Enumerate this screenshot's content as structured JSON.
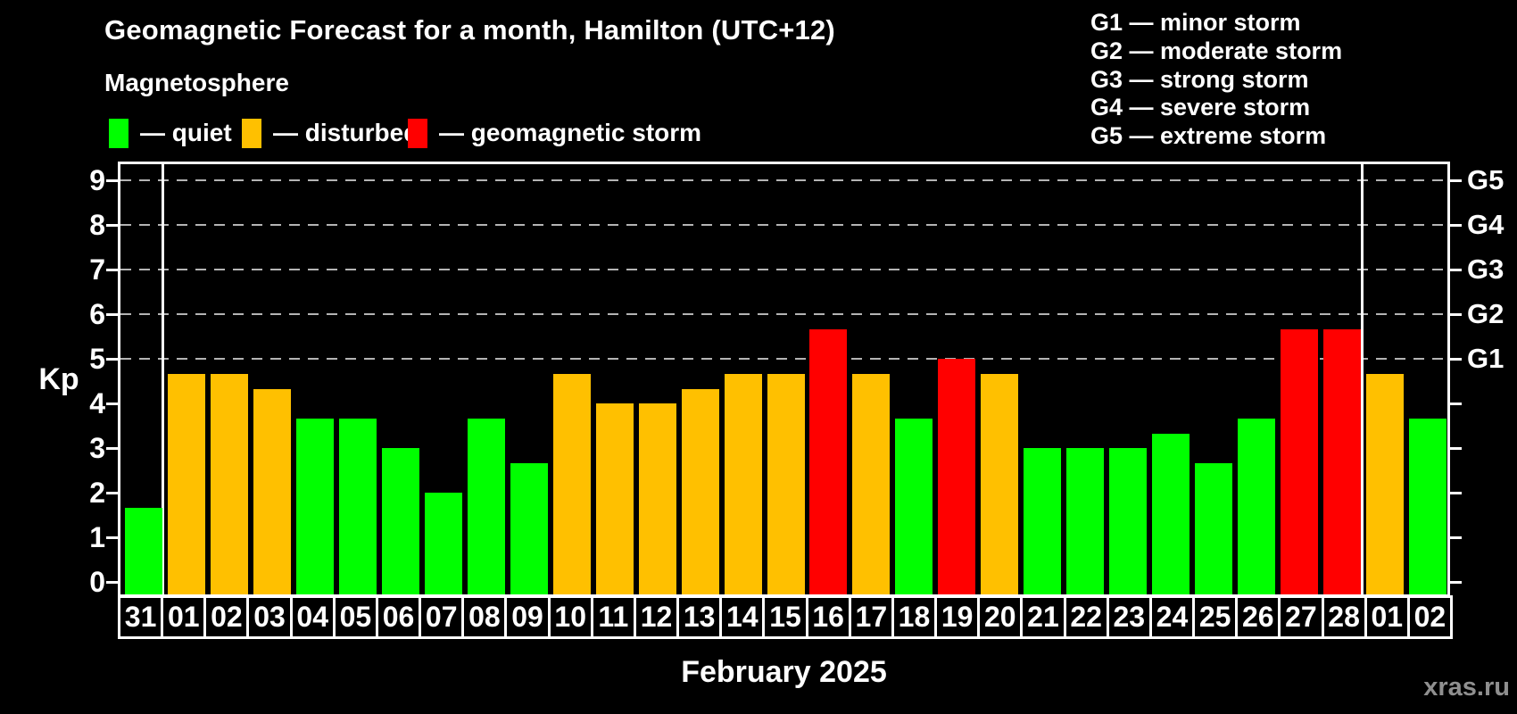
{
  "header": {
    "title": "Geomagnetic Forecast for a month, Hamilton (UTC+12)",
    "subtitle": "Magnetosphere"
  },
  "legend": {
    "items": [
      {
        "key": "quiet",
        "label": "— quiet"
      },
      {
        "key": "disturbed",
        "label": "— disturbed"
      },
      {
        "key": "storm",
        "label": "— geomagnetic storm"
      }
    ]
  },
  "storm_scale_legend": {
    "items": [
      {
        "code": "G1",
        "label": "G1 — minor storm"
      },
      {
        "code": "G2",
        "label": "G2 — moderate storm"
      },
      {
        "code": "G3",
        "label": "G3 — strong storm"
      },
      {
        "code": "G4",
        "label": "G4 — severe storm"
      },
      {
        "code": "G5",
        "label": "G5 — extreme storm"
      }
    ]
  },
  "chart_data": {
    "type": "bar",
    "title": "Geomagnetic Forecast for a month, Hamilton (UTC+12)",
    "xlabel": "February 2025",
    "ylabel": "Kp",
    "ylim": [
      0,
      9.4
    ],
    "yticks": [
      0,
      1,
      2,
      3,
      4,
      5,
      6,
      7,
      8,
      9
    ],
    "gridlines_kp": [
      5,
      6,
      7,
      8,
      9
    ],
    "grid": "dashed horizontal at Kp 5-9 only",
    "legend_position": "top-left",
    "right_axis_labels": [
      {
        "kp": 5,
        "label": "G1"
      },
      {
        "kp": 6,
        "label": "G2"
      },
      {
        "kp": 7,
        "label": "G3"
      },
      {
        "kp": 8,
        "label": "G4"
      },
      {
        "kp": 9,
        "label": "G5"
      }
    ],
    "categories": [
      "31",
      "01",
      "02",
      "03",
      "04",
      "05",
      "06",
      "07",
      "08",
      "09",
      "10",
      "11",
      "12",
      "13",
      "14",
      "15",
      "16",
      "17",
      "18",
      "19",
      "20",
      "21",
      "22",
      "23",
      "24",
      "25",
      "26",
      "27",
      "28",
      "01",
      "02"
    ],
    "values": [
      1.67,
      4.67,
      4.67,
      4.33,
      3.67,
      3.67,
      3,
      2,
      3.67,
      2.67,
      4.67,
      4,
      4,
      4.33,
      4.67,
      4.67,
      5.67,
      4.67,
      3.67,
      5,
      4.67,
      3,
      3,
      3,
      3.33,
      2.67,
      3.67,
      5.67,
      5.67,
      4.67,
      3.67
    ],
    "statuses": [
      "quiet",
      "disturbed",
      "disturbed",
      "disturbed",
      "quiet",
      "quiet",
      "quiet",
      "quiet",
      "quiet",
      "quiet",
      "disturbed",
      "disturbed",
      "disturbed",
      "disturbed",
      "disturbed",
      "disturbed",
      "storm",
      "disturbed",
      "quiet",
      "storm",
      "disturbed",
      "quiet",
      "quiet",
      "quiet",
      "quiet",
      "quiet",
      "quiet",
      "storm",
      "storm",
      "disturbed",
      "quiet"
    ],
    "month_separator_after_index": [
      0,
      28
    ]
  },
  "watermark": "xras.ru",
  "colors": {
    "quiet": "#00ff00",
    "disturbed": "#ffc000",
    "storm": "#ff0000",
    "background": "#000000",
    "grid": "#b4b4b4",
    "axis": "#ffffff",
    "watermark": "#8f8f8f"
  }
}
